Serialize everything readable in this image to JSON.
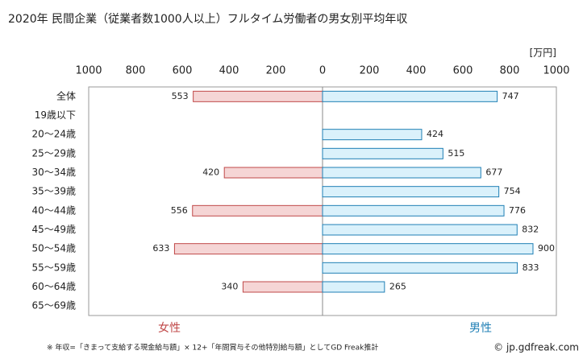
{
  "chart_data": {
    "type": "butterfly",
    "title": "2020年 民間企業（従業者数1000人以上）フルタイム労働者の男女別平均年収",
    "unit": "[万円]",
    "categories": [
      "全体",
      "19歳以下",
      "20～24歳",
      "25～29歳",
      "30～34歳",
      "35～39歳",
      "40～44歳",
      "45～49歳",
      "50～54歳",
      "55～59歳",
      "60～64歳",
      "65～69歳"
    ],
    "series": [
      {
        "name": "女性",
        "color": "#f5d5d5",
        "edge": "#c04848",
        "side": "left",
        "values": [
          553,
          null,
          null,
          null,
          420,
          null,
          556,
          null,
          633,
          null,
          340,
          null
        ]
      },
      {
        "name": "男性",
        "color": "#daf1fb",
        "edge": "#1f7fb5",
        "side": "right",
        "values": [
          747,
          null,
          424,
          515,
          677,
          754,
          776,
          832,
          900,
          833,
          265,
          null
        ]
      }
    ],
    "xlim": [
      -1000,
      1000
    ],
    "xticks": [
      {
        "value": -1000,
        "label": "1000"
      },
      {
        "value": -800,
        "label": "800"
      },
      {
        "value": -600,
        "label": "600"
      },
      {
        "value": -400,
        "label": "400"
      },
      {
        "value": -200,
        "label": "200"
      },
      0,
      200,
      400,
      600,
      800,
      1000
    ],
    "footnote": "※ 年収=「きまって支給する現金給与額」× 12+「年間賞与その他特別給与額」としてGD Freak推計",
    "source": "© jp.gdfreak.com"
  }
}
